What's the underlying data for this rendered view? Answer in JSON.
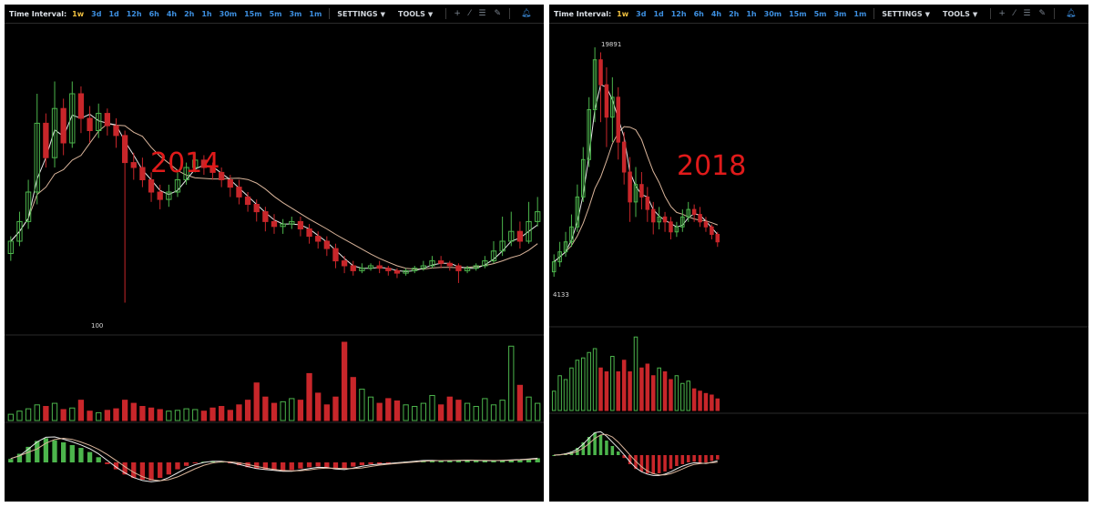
{
  "toolbar": {
    "time_interval_label": "Time Interval:",
    "intervals": [
      "1w",
      "3d",
      "1d",
      "12h",
      "6h",
      "4h",
      "2h",
      "1h",
      "30m",
      "15m",
      "5m",
      "3m",
      "1m"
    ],
    "active_interval": "1w",
    "settings_label": "SETTINGS",
    "tools_label": "TOOLS",
    "caret_icon": "caret-down-icon",
    "tool_icons": [
      "crosshair-icon",
      "line-draw-icon",
      "horizontal-lines-icon",
      "pencil-icon"
    ],
    "alert_icon": "bell-icon"
  },
  "colors": {
    "background": "#000000",
    "up": "#4cb54c",
    "down": "#c8262a",
    "ma_fast": "#e8e8e8",
    "ma_slow": "#d9b49a",
    "annotation": "#e01a1a"
  },
  "chart_data": [
    {
      "type": "candlestick",
      "title": "2014",
      "y_scale": "log",
      "low_marker": "100",
      "panes": [
        "price",
        "volume",
        "macd"
      ],
      "candles": [
        [
          0.25,
          0.3,
          0.22,
          0.32
        ],
        [
          0.3,
          0.38,
          0.28,
          0.42
        ],
        [
          0.38,
          0.5,
          0.35,
          0.55
        ],
        [
          0.5,
          0.78,
          0.45,
          0.9
        ],
        [
          0.78,
          0.64,
          0.6,
          0.82
        ],
        [
          0.64,
          0.84,
          0.6,
          0.95
        ],
        [
          0.84,
          0.7,
          0.65,
          0.88
        ],
        [
          0.7,
          0.9,
          0.68,
          0.95
        ],
        [
          0.9,
          0.8,
          0.74,
          0.93
        ],
        [
          0.8,
          0.75,
          0.7,
          0.85
        ],
        [
          0.75,
          0.82,
          0.72,
          0.86
        ],
        [
          0.82,
          0.77,
          0.73,
          0.84
        ],
        [
          0.77,
          0.73,
          0.68,
          0.8
        ],
        [
          0.73,
          0.62,
          0.05,
          0.75
        ],
        [
          0.62,
          0.6,
          0.55,
          0.66
        ],
        [
          0.6,
          0.55,
          0.52,
          0.64
        ],
        [
          0.55,
          0.5,
          0.46,
          0.58
        ],
        [
          0.5,
          0.47,
          0.43,
          0.53
        ],
        [
          0.47,
          0.5,
          0.44,
          0.53
        ],
        [
          0.5,
          0.55,
          0.48,
          0.58
        ],
        [
          0.55,
          0.6,
          0.53,
          0.62
        ],
        [
          0.6,
          0.63,
          0.58,
          0.66
        ],
        [
          0.63,
          0.6,
          0.57,
          0.65
        ],
        [
          0.6,
          0.58,
          0.55,
          0.62
        ],
        [
          0.58,
          0.55,
          0.52,
          0.6
        ],
        [
          0.55,
          0.52,
          0.48,
          0.57
        ],
        [
          0.52,
          0.48,
          0.45,
          0.55
        ],
        [
          0.48,
          0.45,
          0.42,
          0.5
        ],
        [
          0.45,
          0.42,
          0.38,
          0.47
        ],
        [
          0.42,
          0.38,
          0.34,
          0.44
        ],
        [
          0.38,
          0.36,
          0.33,
          0.41
        ],
        [
          0.36,
          0.37,
          0.33,
          0.39
        ],
        [
          0.37,
          0.38,
          0.35,
          0.4
        ],
        [
          0.38,
          0.35,
          0.32,
          0.4
        ],
        [
          0.35,
          0.32,
          0.29,
          0.37
        ],
        [
          0.32,
          0.3,
          0.27,
          0.34
        ],
        [
          0.3,
          0.27,
          0.24,
          0.32
        ],
        [
          0.27,
          0.22,
          0.19,
          0.29
        ],
        [
          0.22,
          0.2,
          0.17,
          0.24
        ],
        [
          0.2,
          0.18,
          0.16,
          0.22
        ],
        [
          0.18,
          0.19,
          0.17,
          0.21
        ],
        [
          0.19,
          0.2,
          0.18,
          0.21
        ],
        [
          0.2,
          0.19,
          0.17,
          0.22
        ],
        [
          0.19,
          0.18,
          0.16,
          0.2
        ],
        [
          0.18,
          0.17,
          0.15,
          0.19
        ],
        [
          0.17,
          0.18,
          0.16,
          0.19
        ],
        [
          0.18,
          0.19,
          0.17,
          0.2
        ],
        [
          0.19,
          0.2,
          0.18,
          0.22
        ],
        [
          0.2,
          0.22,
          0.19,
          0.24
        ],
        [
          0.22,
          0.21,
          0.19,
          0.24
        ],
        [
          0.21,
          0.2,
          0.18,
          0.22
        ],
        [
          0.2,
          0.18,
          0.13,
          0.21
        ],
        [
          0.18,
          0.19,
          0.17,
          0.2
        ],
        [
          0.19,
          0.2,
          0.18,
          0.21
        ],
        [
          0.2,
          0.22,
          0.19,
          0.24
        ],
        [
          0.22,
          0.26,
          0.21,
          0.3
        ],
        [
          0.26,
          0.3,
          0.24,
          0.4
        ],
        [
          0.3,
          0.34,
          0.28,
          0.42
        ],
        [
          0.34,
          0.3,
          0.27,
          0.38
        ],
        [
          0.3,
          0.38,
          0.29,
          0.46
        ],
        [
          0.38,
          0.42,
          0.36,
          0.48
        ]
      ],
      "volume": [
        0.08,
        0.12,
        0.15,
        0.2,
        0.18,
        0.22,
        0.14,
        0.16,
        0.26,
        0.12,
        0.1,
        0.13,
        0.15,
        0.26,
        0.22,
        0.18,
        0.16,
        0.14,
        0.12,
        0.13,
        0.15,
        0.14,
        0.12,
        0.16,
        0.18,
        0.13,
        0.2,
        0.26,
        0.48,
        0.3,
        0.22,
        0.24,
        0.28,
        0.26,
        0.6,
        0.35,
        0.2,
        0.3,
        1.0,
        0.55,
        0.4,
        0.3,
        0.22,
        0.28,
        0.25,
        0.2,
        0.18,
        0.22,
        0.32,
        0.2,
        0.3,
        0.26,
        0.22,
        0.18,
        0.28,
        0.2,
        0.26,
        0.95,
        0.45,
        0.3,
        0.22
      ],
      "macd": [
        0.1,
        0.25,
        0.45,
        0.62,
        0.7,
        0.64,
        0.58,
        0.5,
        0.42,
        0.3,
        0.15,
        -0.05,
        -0.2,
        -0.35,
        -0.45,
        -0.5,
        -0.52,
        -0.45,
        -0.35,
        -0.2,
        -0.1,
        -0.02,
        0.02,
        0.04,
        0.02,
        -0.02,
        -0.08,
        -0.14,
        -0.18,
        -0.2,
        -0.22,
        -0.25,
        -0.22,
        -0.18,
        -0.14,
        -0.12,
        -0.15,
        -0.2,
        -0.18,
        -0.12,
        -0.08,
        -0.05,
        -0.04,
        -0.02,
        0.0,
        0.02,
        0.04,
        0.06,
        0.05,
        0.04,
        0.05,
        0.06,
        0.06,
        0.05,
        0.04,
        0.05,
        0.06,
        0.07,
        0.08,
        0.1,
        0.12
      ]
    },
    {
      "type": "candlestick",
      "title": "2018",
      "y_scale": "log",
      "high_marker": "19891",
      "low_marker": "4133",
      "panes": [
        "price",
        "volume",
        "macd"
      ],
      "candles": [
        [
          0.1,
          0.14,
          0.08,
          0.17
        ],
        [
          0.14,
          0.18,
          0.12,
          0.22
        ],
        [
          0.18,
          0.22,
          0.16,
          0.26
        ],
        [
          0.22,
          0.28,
          0.2,
          0.33
        ],
        [
          0.28,
          0.4,
          0.26,
          0.45
        ],
        [
          0.4,
          0.55,
          0.38,
          0.6
        ],
        [
          0.55,
          0.75,
          0.52,
          0.8
        ],
        [
          0.75,
          0.95,
          0.7,
          1.0
        ],
        [
          0.95,
          0.85,
          0.7,
          0.98
        ],
        [
          0.85,
          0.72,
          0.6,
          0.92
        ],
        [
          0.72,
          0.8,
          0.62,
          0.88
        ],
        [
          0.8,
          0.62,
          0.55,
          0.84
        ],
        [
          0.62,
          0.5,
          0.45,
          0.66
        ],
        [
          0.5,
          0.38,
          0.3,
          0.56
        ],
        [
          0.38,
          0.45,
          0.32,
          0.52
        ],
        [
          0.45,
          0.4,
          0.35,
          0.5
        ],
        [
          0.4,
          0.35,
          0.3,
          0.44
        ],
        [
          0.35,
          0.3,
          0.25,
          0.38
        ],
        [
          0.3,
          0.32,
          0.27,
          0.36
        ],
        [
          0.32,
          0.3,
          0.26,
          0.34
        ],
        [
          0.3,
          0.26,
          0.23,
          0.32
        ],
        [
          0.26,
          0.28,
          0.24,
          0.3
        ],
        [
          0.28,
          0.32,
          0.26,
          0.35
        ],
        [
          0.32,
          0.35,
          0.3,
          0.38
        ],
        [
          0.35,
          0.33,
          0.3,
          0.37
        ],
        [
          0.33,
          0.3,
          0.28,
          0.36
        ],
        [
          0.3,
          0.28,
          0.26,
          0.32
        ],
        [
          0.28,
          0.25,
          0.23,
          0.29
        ],
        [
          0.25,
          0.22,
          0.2,
          0.26
        ]
      ],
      "volume": [
        0.25,
        0.45,
        0.4,
        0.55,
        0.65,
        0.68,
        0.75,
        0.8,
        0.55,
        0.5,
        0.7,
        0.5,
        0.65,
        0.5,
        0.95,
        0.55,
        0.6,
        0.45,
        0.55,
        0.5,
        0.4,
        0.45,
        0.35,
        0.38,
        0.28,
        0.25,
        0.22,
        0.2,
        0.15
      ],
      "macd": [
        0.0,
        0.02,
        0.05,
        0.1,
        0.2,
        0.35,
        0.5,
        0.62,
        0.55,
        0.4,
        0.25,
        0.1,
        -0.08,
        -0.25,
        -0.38,
        -0.45,
        -0.5,
        -0.52,
        -0.5,
        -0.45,
        -0.38,
        -0.3,
        -0.25,
        -0.2,
        -0.18,
        -0.22,
        -0.2,
        -0.16,
        -0.12
      ]
    }
  ]
}
